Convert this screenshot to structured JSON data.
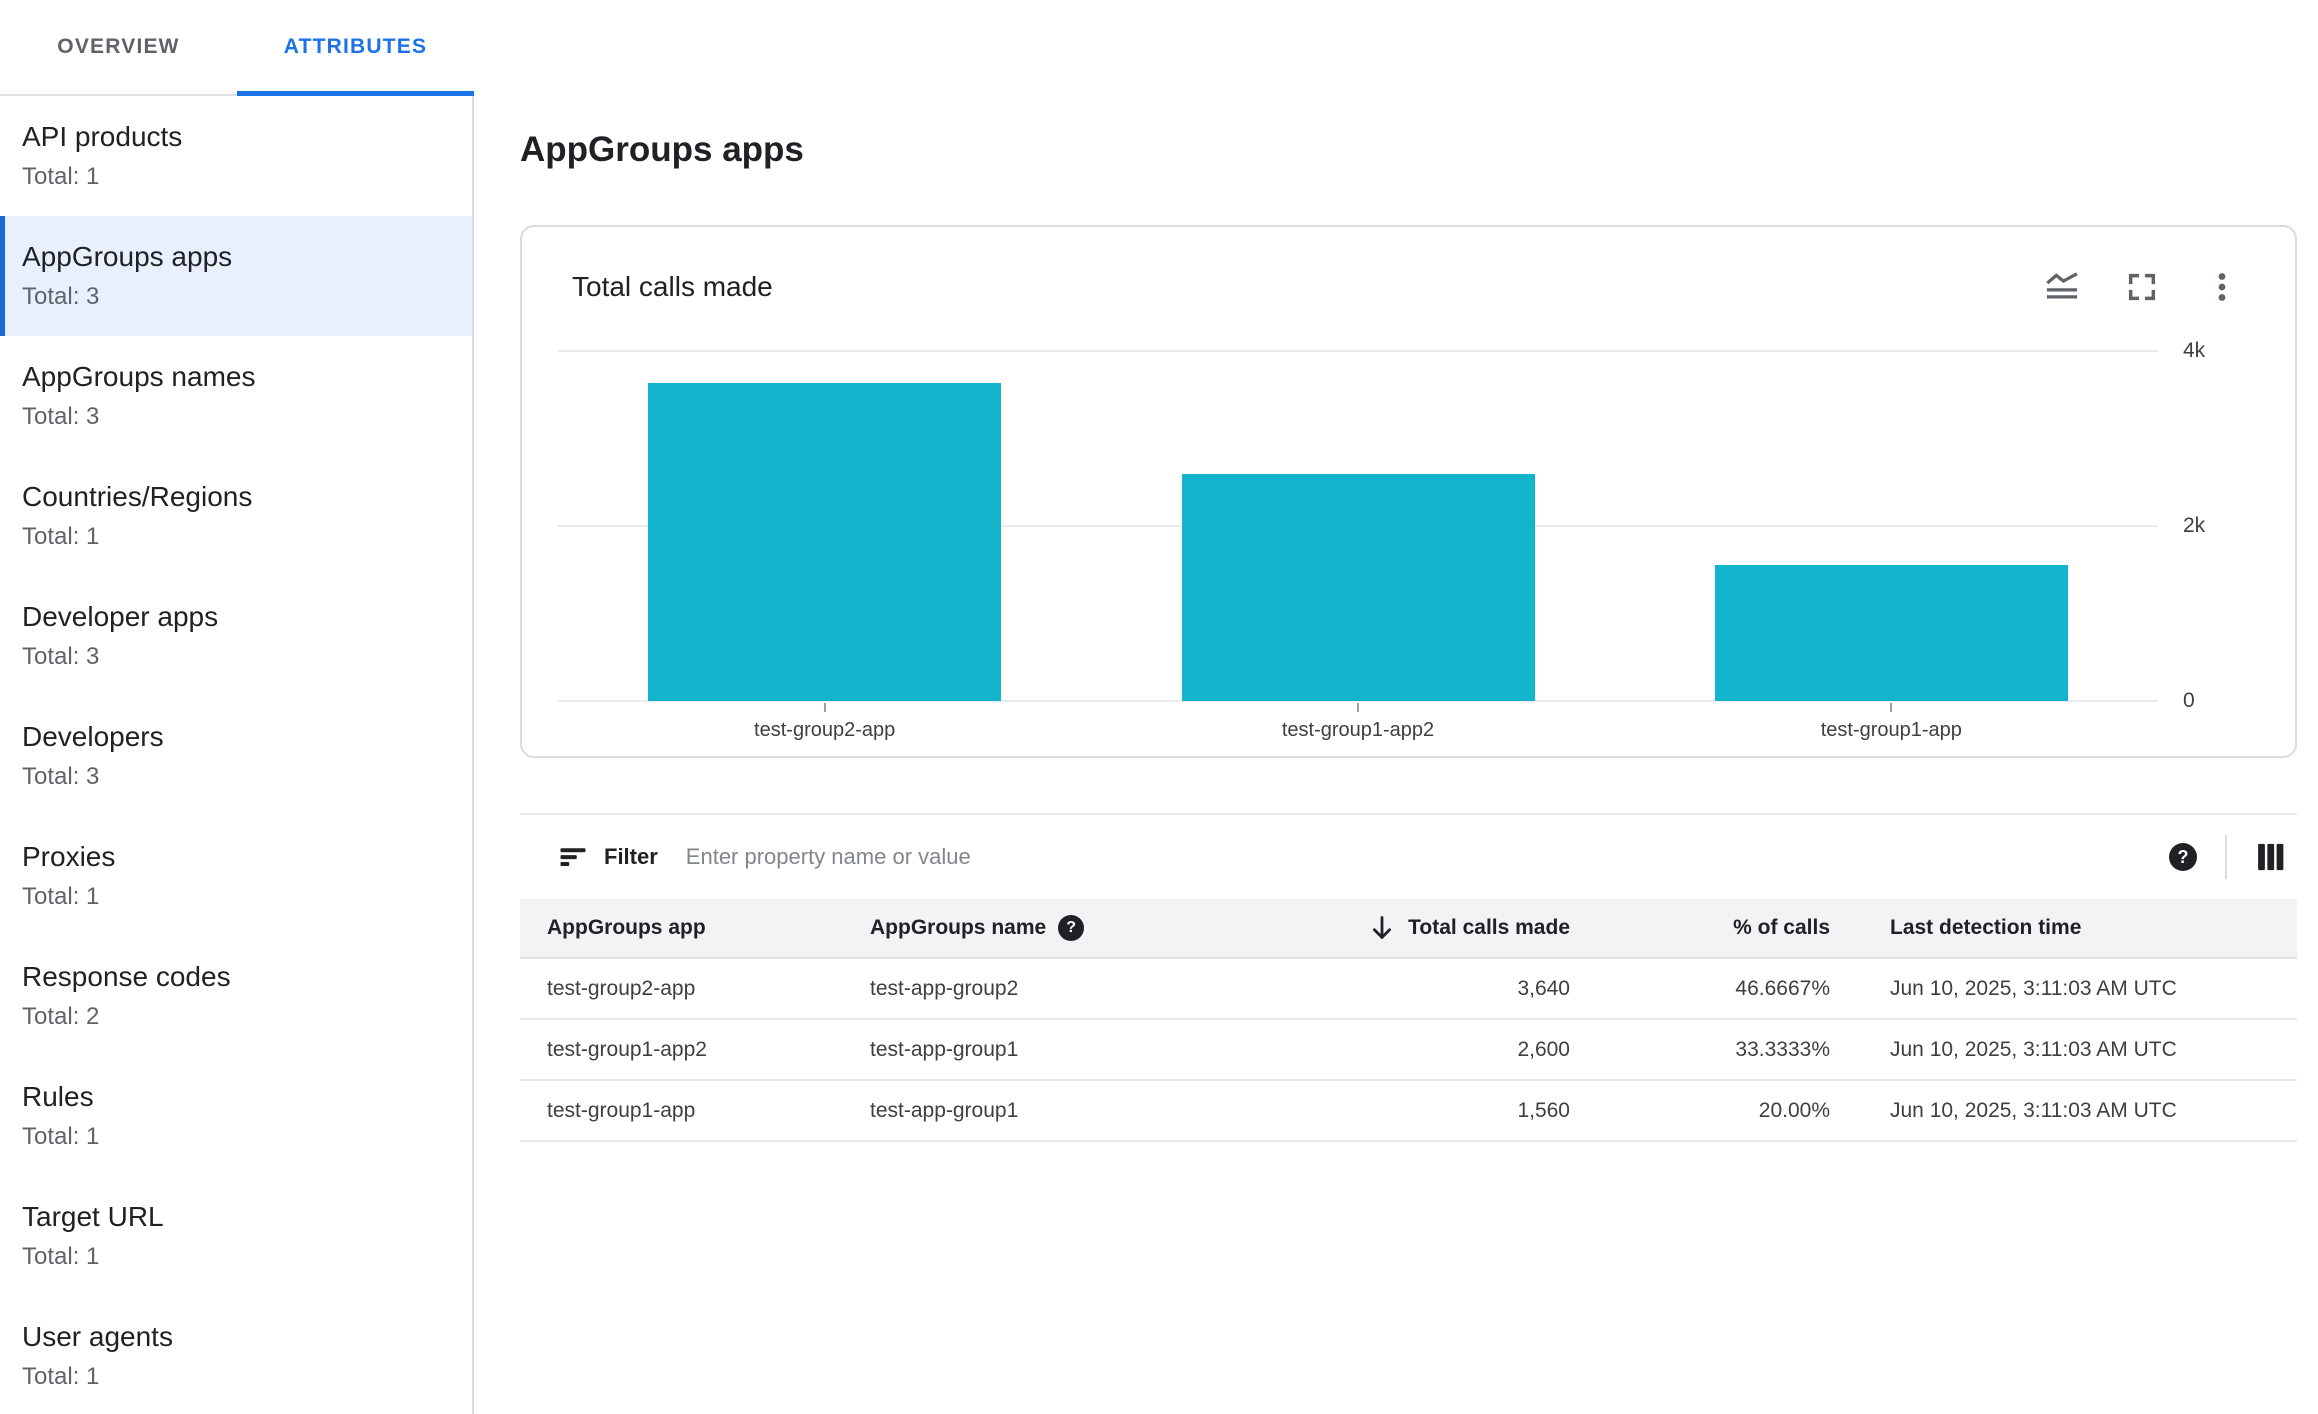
{
  "tabs": [
    {
      "label": "OVERVIEW",
      "active": false
    },
    {
      "label": "ATTRIBUTES",
      "active": true
    }
  ],
  "sidebar": {
    "selected_index": 1,
    "items": [
      {
        "label": "API products",
        "total": "Total: 1"
      },
      {
        "label": "AppGroups apps",
        "total": "Total: 3"
      },
      {
        "label": "AppGroups names",
        "total": "Total: 3"
      },
      {
        "label": "Countries/Regions",
        "total": "Total: 1"
      },
      {
        "label": "Developer apps",
        "total": "Total: 3"
      },
      {
        "label": "Developers",
        "total": "Total: 3"
      },
      {
        "label": "Proxies",
        "total": "Total: 1"
      },
      {
        "label": "Response codes",
        "total": "Total: 2"
      },
      {
        "label": "Rules",
        "total": "Total: 1"
      },
      {
        "label": "Target URL",
        "total": "Total: 1"
      },
      {
        "label": "User agents",
        "total": "Total: 1"
      }
    ]
  },
  "main": {
    "title": "AppGroups apps"
  },
  "chart_card": {
    "title": "Total calls made"
  },
  "chart_data": {
    "type": "bar",
    "title": "Total calls made",
    "categories": [
      "test-group2-app",
      "test-group1-app2",
      "test-group1-app"
    ],
    "values": [
      3640,
      2600,
      1560
    ],
    "xlabel": "",
    "ylabel": "",
    "ylim": [
      0,
      4000
    ],
    "yticks": [
      {
        "label": "4k",
        "value": 4000
      },
      {
        "label": "2k",
        "value": 2000
      },
      {
        "label": "0",
        "value": 0
      }
    ],
    "value_axis_side": "right",
    "grid": "horizontal",
    "legend": "none",
    "bar_color": "#12b5cb"
  },
  "filter": {
    "label": "Filter",
    "placeholder": "Enter property name or value",
    "value": ""
  },
  "table": {
    "columns": [
      {
        "label": "AppGroups app",
        "align": "left",
        "help": false,
        "sorted": false
      },
      {
        "label": "AppGroups name",
        "align": "left",
        "help": true,
        "sorted": false
      },
      {
        "label": "Total calls made",
        "align": "right",
        "help": false,
        "sorted": "desc"
      },
      {
        "label": "% of calls",
        "align": "right",
        "help": false,
        "sorted": false
      },
      {
        "label": "Last detection time",
        "align": "left",
        "help": false,
        "sorted": false
      }
    ],
    "rows": [
      [
        "test-group2-app",
        "test-app-group2",
        "3,640",
        "46.6667%",
        "Jun 10, 2025, 3:11:03 AM UTC"
      ],
      [
        "test-group1-app2",
        "test-app-group1",
        "2,600",
        "33.3333%",
        "Jun 10, 2025, 3:11:03 AM UTC"
      ],
      [
        "test-group1-app",
        "test-app-group1",
        "1,560",
        "20.00%",
        "Jun 10, 2025, 3:11:03 AM UTC"
      ]
    ]
  },
  "colors": {
    "accent": "#1a73e8",
    "selected_item_bg": "#e8f0fe",
    "selected_item_bar": "#1967d2",
    "bar": "#12b5cb",
    "table_header_bg": "#f1f3f4",
    "text_primary": "#202124",
    "text_secondary": "#5f6368",
    "border": "#dadce0"
  }
}
